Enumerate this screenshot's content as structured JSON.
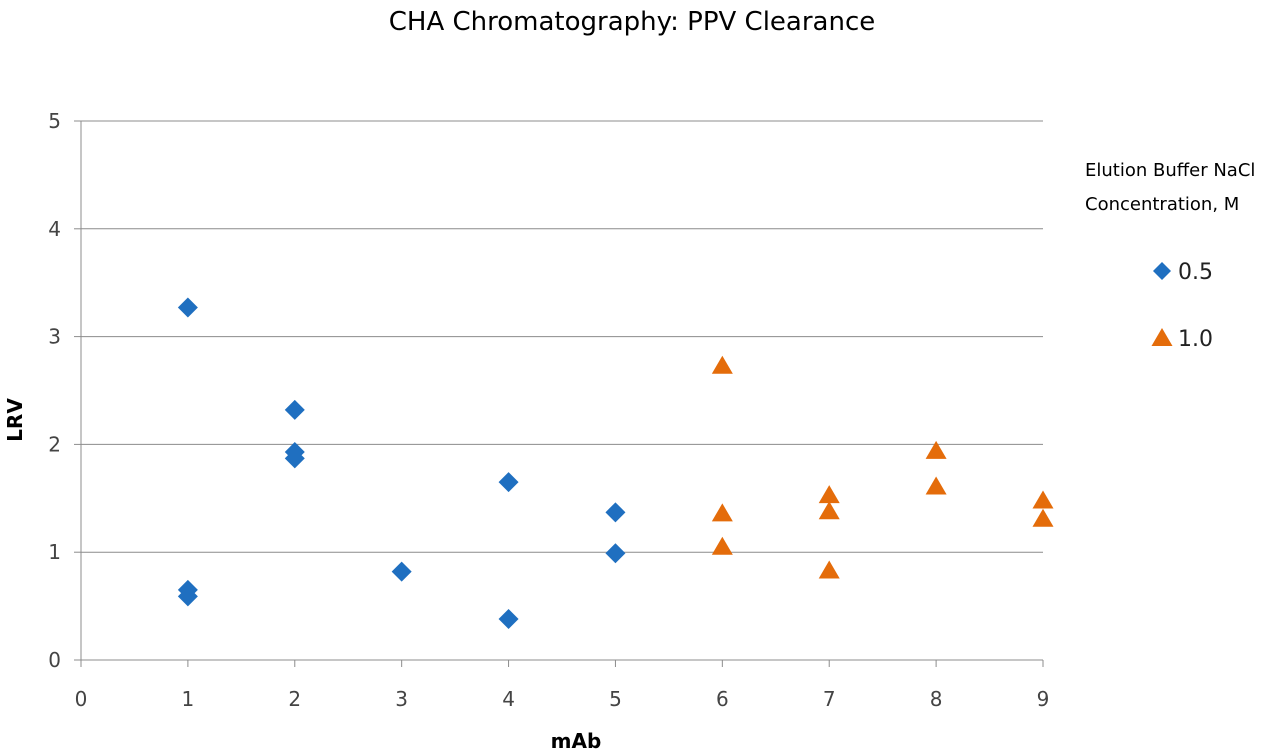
{
  "chart_data": {
    "type": "scatter",
    "title": "CHA Chromatography:  PPV Clearance",
    "xlabel": "mAb",
    "ylabel": "LRV",
    "xlim": [
      0,
      9
    ],
    "ylim": [
      0,
      5
    ],
    "xticks": [
      "0",
      "1",
      "2",
      "3",
      "4",
      "5",
      "6",
      "7",
      "8",
      "9"
    ],
    "yticks": [
      "0",
      "1",
      "2",
      "3",
      "4",
      "5"
    ],
    "grid": "horizontal",
    "legend": {
      "title_line1": "Elution Buffer NaCl",
      "title_line2": "Concentration, M",
      "placement": "right"
    },
    "series": [
      {
        "name": "0.5",
        "marker": "diamond",
        "color": "#1F6FC0",
        "points": [
          [
            1,
            3.27
          ],
          [
            1,
            0.65
          ],
          [
            1,
            0.59
          ],
          [
            2,
            2.32
          ],
          [
            2,
            1.93
          ],
          [
            2,
            1.87
          ],
          [
            3,
            0.82
          ],
          [
            4,
            1.65
          ],
          [
            4,
            0.38
          ],
          [
            5,
            1.37
          ],
          [
            5,
            0.99
          ]
        ]
      },
      {
        "name": "1.0",
        "marker": "triangle",
        "color": "#E46C0A",
        "points": [
          [
            6,
            2.73
          ],
          [
            6,
            1.36
          ],
          [
            6,
            1.05
          ],
          [
            7,
            1.53
          ],
          [
            7,
            1.38
          ],
          [
            7,
            0.83
          ],
          [
            8,
            1.94
          ],
          [
            8,
            1.61
          ],
          [
            9,
            1.48
          ],
          [
            9,
            1.31
          ]
        ]
      }
    ]
  }
}
